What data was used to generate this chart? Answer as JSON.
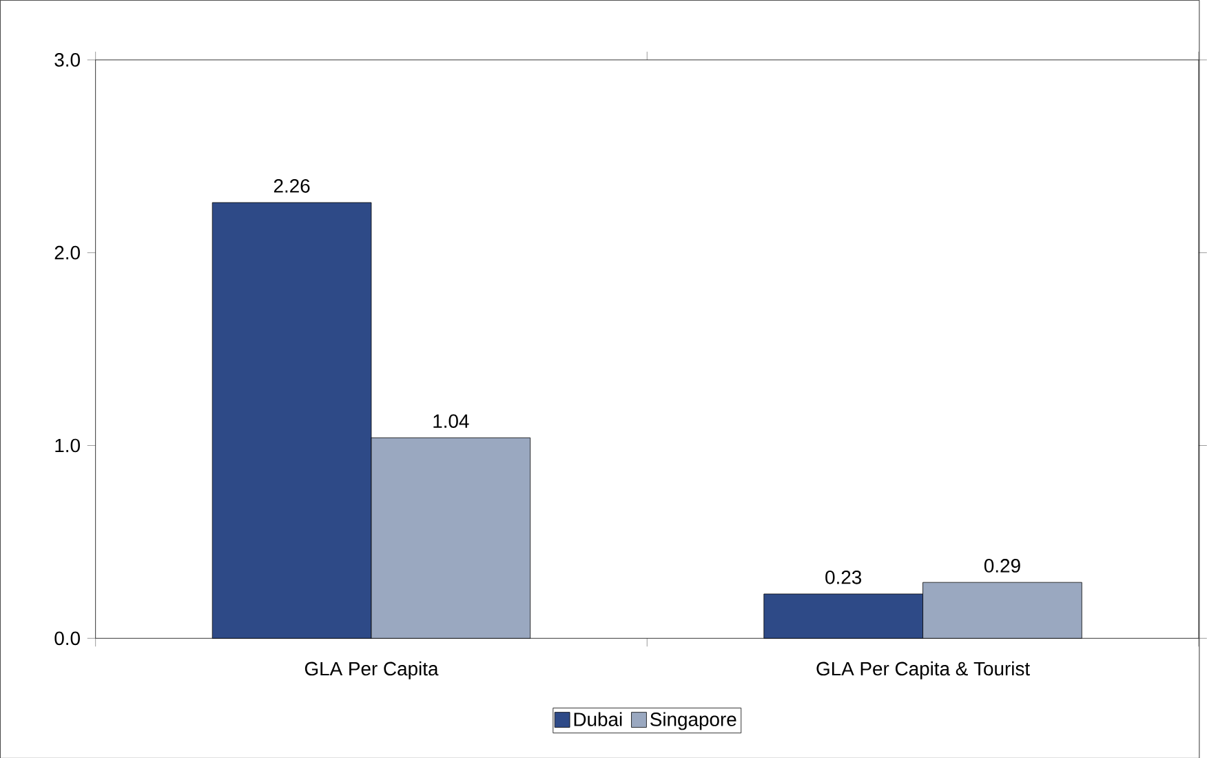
{
  "chart_data": {
    "type": "bar",
    "categories": [
      "GLA Per Capita",
      "GLA Per Capita & Tourist"
    ],
    "series": [
      {
        "name": "Dubai",
        "color": "#2e4a87",
        "values": [
          2.26,
          0.23
        ]
      },
      {
        "name": "Singapore",
        "color": "#9aa8c0",
        "values": [
          1.04,
          0.29
        ]
      }
    ],
    "ylim": [
      0,
      3
    ],
    "yticks": [
      {
        "value": 0,
        "label": "0.0"
      },
      {
        "value": 1,
        "label": "1.0"
      },
      {
        "value": 2,
        "label": "2.0"
      },
      {
        "value": 3,
        "label": "3.0"
      }
    ],
    "data_labels": true,
    "legend": "bottom"
  }
}
